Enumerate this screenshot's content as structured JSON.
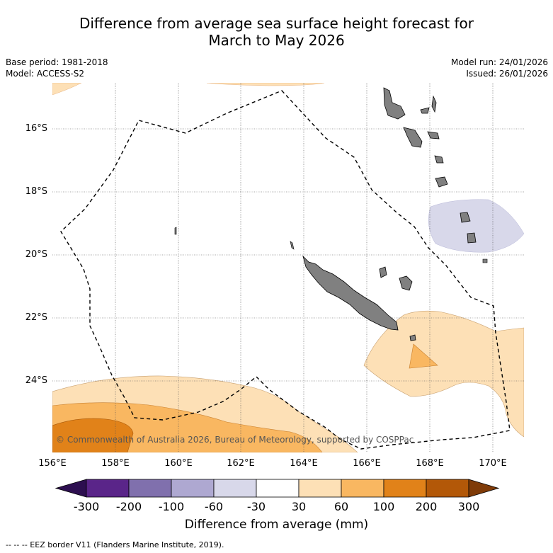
{
  "title": {
    "line1": "Difference from average sea surface height forecast for",
    "line2": "March to May 2026"
  },
  "meta": {
    "base_period": "Base period: 1981-2018",
    "model": "Model: ACCESS-S2",
    "model_run": "Model run: 24/01/2026",
    "issued": "Issued: 26/01/2026"
  },
  "axes": {
    "lat_labels": [
      "16°S",
      "18°S",
      "20°S",
      "22°S",
      "24°S"
    ],
    "lon_labels": [
      "156°E",
      "158°E",
      "160°E",
      "162°E",
      "164°E",
      "166°E",
      "168°E",
      "170°E"
    ]
  },
  "copyright": "© Commonwealth of Australia 2026, Bureau of Meteorology, supported by COSPPac",
  "colorbar": {
    "labels": [
      "-300",
      "-200",
      "-100",
      "-60",
      "-30",
      "30",
      "60",
      "100",
      "200",
      "300"
    ],
    "title": "Difference from average (mm)",
    "colors": {
      "under": "#2d0f50",
      "bins": [
        "#5a2589",
        "#8070ad",
        "#aea8d1",
        "#d8d8ea",
        "#ffffff",
        "#fde0b6",
        "#f9b761",
        "#e18219",
        "#b35808"
      ],
      "over": "#7f3b08"
    }
  },
  "footer": "-- -- -- EEZ border V11 (Flanders Marine Institute, 2019)."
}
